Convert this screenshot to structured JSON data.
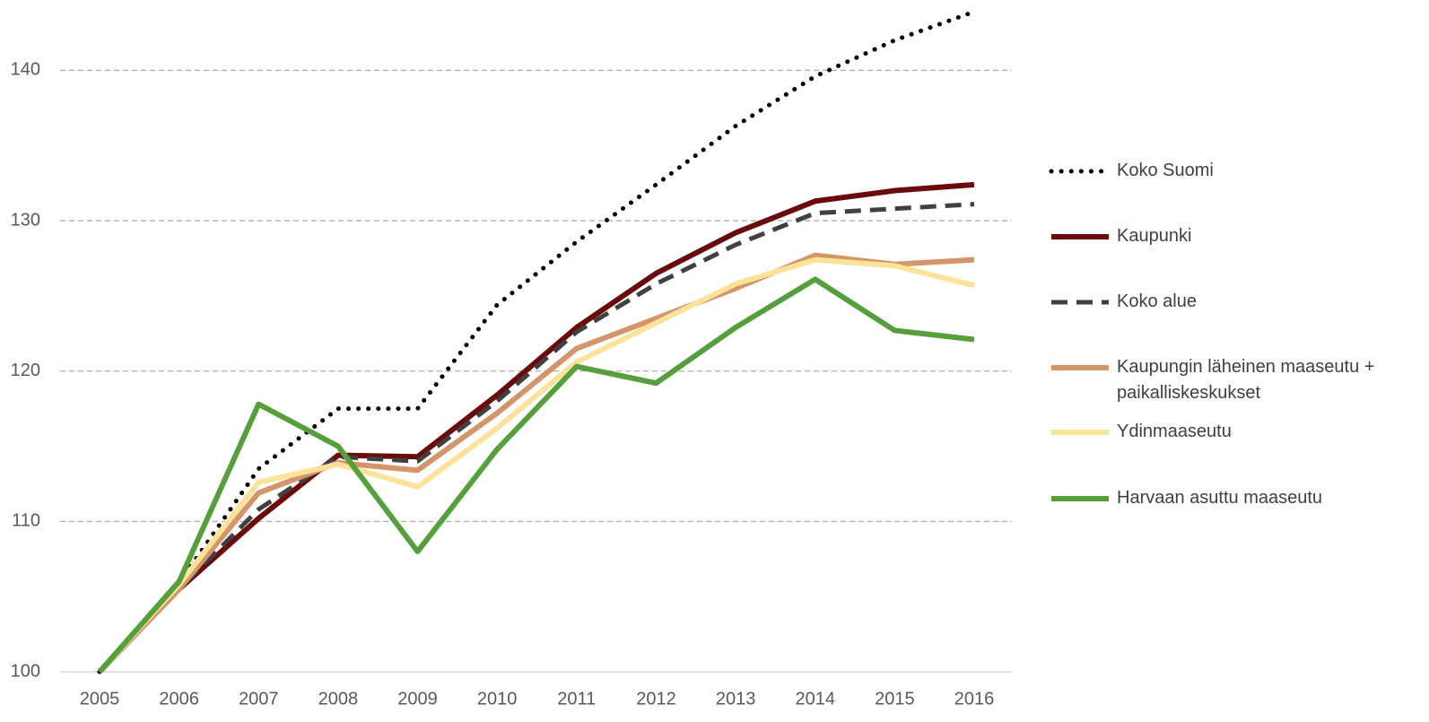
{
  "chart_data": {
    "type": "line",
    "categories": [
      "2005",
      "2006",
      "2007",
      "2008",
      "2009",
      "2010",
      "2011",
      "2012",
      "2013",
      "2014",
      "2015",
      "2016"
    ],
    "series": [
      {
        "name": "Koko Suomi",
        "color": "#000000",
        "style": "dotted",
        "values": [
          100,
          105.9,
          113.5,
          117.5,
          117.5,
          124.4,
          128.6,
          132.4,
          136.3,
          139.6,
          142,
          143.9
        ]
      },
      {
        "name": "Kaupunki",
        "color": "#6b0a0a",
        "style": "solid",
        "values": [
          100,
          105.5,
          110.2,
          114.4,
          114.3,
          118.4,
          122.9,
          126.5,
          129.2,
          131.3,
          132,
          132.4
        ]
      },
      {
        "name": "Koko alue",
        "color": "#404040",
        "style": "dashed",
        "values": [
          100,
          105.5,
          110.8,
          114.3,
          114,
          118,
          122.6,
          125.8,
          128.4,
          130.5,
          130.8,
          131.1
        ]
      },
      {
        "name": "Kaupungin läheinen maaseutu + paikalliskeskukset",
        "color": "#d4956a",
        "style": "solid",
        "values": [
          100,
          105.5,
          111.9,
          113.9,
          113.4,
          117.2,
          121.5,
          123.5,
          125.5,
          127.7,
          127.1,
          127.4
        ]
      },
      {
        "name": "Ydinmaaseutu",
        "color": "#fde29a",
        "style": "solid",
        "values": [
          100,
          105.8,
          112.6,
          113.8,
          112.3,
          116.2,
          120.6,
          123.2,
          125.8,
          127.4,
          127,
          125.7
        ]
      },
      {
        "name": "Harvaan asuttu maaseutu",
        "color": "#55a03c",
        "style": "solid",
        "values": [
          100,
          106,
          117.8,
          115,
          108,
          114.8,
          120.3,
          119.2,
          122.9,
          126.1,
          122.7,
          122.1
        ]
      }
    ],
    "ylim": [
      100,
      144.5
    ],
    "yticks": [
      100,
      110,
      120,
      130,
      140
    ],
    "grid": true,
    "legend": "right"
  }
}
